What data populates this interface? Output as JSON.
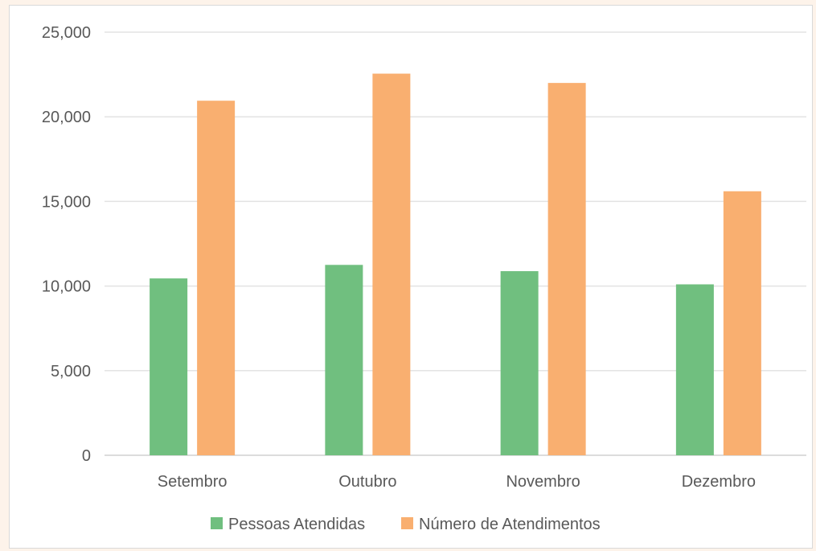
{
  "chart_data": {
    "type": "bar",
    "categories": [
      "Setembro",
      "Outubro",
      "Novembro",
      "Dezembro"
    ],
    "series": [
      {
        "name": "Pessoas Atendidas",
        "color": "#70bf7f",
        "values": [
          10450,
          11250,
          10880,
          10100
        ]
      },
      {
        "name": "Número de Atendimentos",
        "color": "#f9af70",
        "values": [
          20950,
          22550,
          22000,
          15600
        ]
      }
    ],
    "ylim": [
      0,
      25000
    ],
    "yticks": [
      "0",
      "5,000",
      "10,000",
      "15,000",
      "20,000",
      "25,000"
    ],
    "grid": true,
    "legend": "bottom-center"
  }
}
